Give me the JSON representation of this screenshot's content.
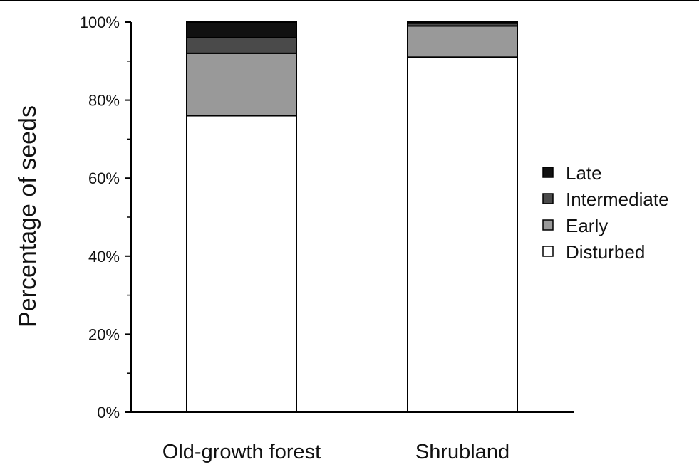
{
  "chart_data": {
    "type": "bar",
    "stacked": true,
    "categories": [
      "Old-growth forest",
      "Shrubland"
    ],
    "series": [
      {
        "name": "Disturbed",
        "color": "#ffffff",
        "values": [
          76,
          91
        ]
      },
      {
        "name": "Early",
        "color": "#999999",
        "values": [
          16,
          8
        ]
      },
      {
        "name": "Intermediate",
        "color": "#4a4a4a",
        "values": [
          4,
          0.7
        ]
      },
      {
        "name": "Late",
        "color": "#111111",
        "values": [
          4,
          0.3
        ]
      }
    ],
    "legend_order": [
      "Late",
      "Intermediate",
      "Early",
      "Disturbed"
    ],
    "ylabel": "Percentage of seeds",
    "xlabel": "",
    "ylim": [
      0,
      100
    ],
    "yticks": [
      0,
      20,
      40,
      60,
      80,
      100
    ],
    "ytick_labels": [
      "0%",
      "20%",
      "40%",
      "60%",
      "80%",
      "100%"
    ],
    "legend_position": "right",
    "grid": false
  }
}
